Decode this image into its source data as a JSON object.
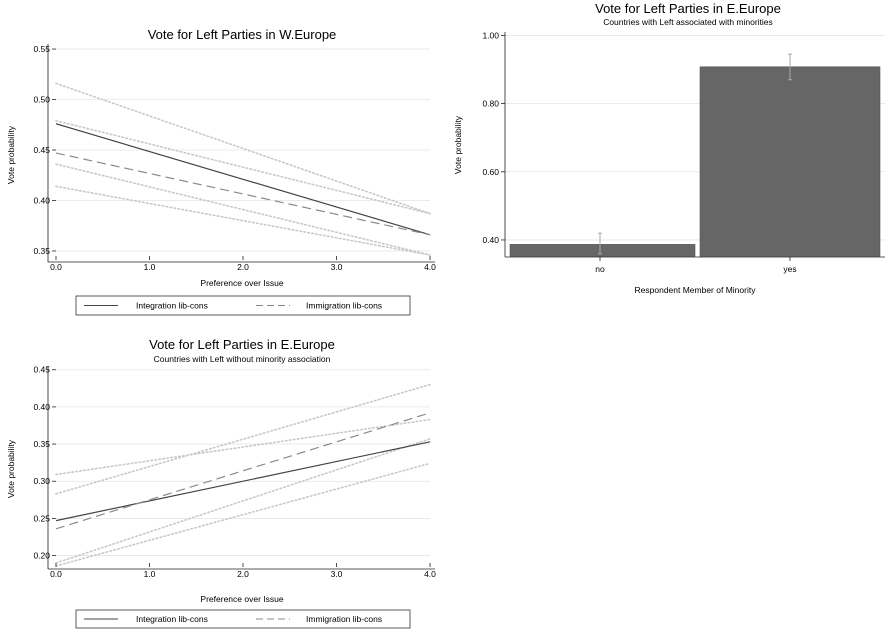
{
  "chart_data": [
    {
      "type": "line",
      "title": "Vote for Left Parties in W.Europe",
      "subtitle": "",
      "xlabel": "Preference over Issue",
      "ylabel": "Vote probability",
      "xlim": [
        0,
        4
      ],
      "ylim": [
        0.345,
        0.555
      ],
      "xticks": [
        0,
        1,
        2,
        3,
        4
      ],
      "xtick_labels": [
        "0.0",
        "1.0",
        "2.0",
        "3.0",
        "4.0"
      ],
      "yticks": [
        0.35,
        0.4,
        0.45,
        0.5,
        0.55
      ],
      "ytick_labels": [
        "0.35",
        "0.40",
        "0.45",
        "0.50",
        "0.55"
      ],
      "grid": true,
      "legend_position": "bottom",
      "x": [
        0,
        4
      ],
      "series": [
        {
          "name": "Integration lib-cons",
          "style": "solid",
          "values": [
            0.476,
            0.366
          ],
          "ci_lower": [
            0.436,
            0.346
          ],
          "ci_upper": [
            0.516,
            0.387
          ]
        },
        {
          "name": "Immigration lib-cons",
          "style": "dashed",
          "values": [
            0.447,
            0.366
          ],
          "ci_lower": [
            0.414,
            0.346
          ],
          "ci_upper": [
            0.479,
            0.387
          ]
        }
      ]
    },
    {
      "type": "bar",
      "title": "Vote for Left Parties in E.Europe",
      "subtitle": "Countries with Left associated with minorities",
      "xlabel": "Respondent Member of Minority",
      "ylabel": "Vote probability",
      "ylim": [
        0.35,
        1.01
      ],
      "yticks": [
        0.4,
        0.6,
        0.8,
        1.0
      ],
      "ytick_labels": [
        "0.40",
        "0.60",
        "0.80",
        "1.00"
      ],
      "grid": true,
      "categories": [
        "no",
        "yes"
      ],
      "values": [
        0.387,
        0.908
      ],
      "ci_lower": [
        0.359,
        0.87
      ],
      "ci_upper": [
        0.42,
        0.945
      ]
    },
    {
      "type": "line",
      "title": "Vote for Left Parties in E.Europe",
      "subtitle": "Countries with Left without minority association",
      "xlabel": "Preference over Issue",
      "ylabel": "Vote probability",
      "xlim": [
        0,
        4
      ],
      "ylim": [
        0.19,
        0.455
      ],
      "xticks": [
        0,
        1,
        2,
        3,
        4
      ],
      "xtick_labels": [
        "0.0",
        "1.0",
        "2.0",
        "3.0",
        "4.0"
      ],
      "yticks": [
        0.2,
        0.25,
        0.3,
        0.35,
        0.4,
        0.45
      ],
      "ytick_labels": [
        "0.20",
        "0.25",
        "0.30",
        "0.35",
        "0.40",
        "0.45"
      ],
      "grid": true,
      "legend_position": "bottom",
      "x": [
        0,
        4
      ],
      "series": [
        {
          "name": "Integration lib-cons",
          "style": "solid",
          "values": [
            0.247,
            0.353
          ],
          "ci_lower": [
            0.186,
            0.324
          ],
          "ci_upper": [
            0.309,
            0.383
          ]
        },
        {
          "name": "Immigration lib-cons",
          "style": "dashed",
          "values": [
            0.236,
            0.392
          ],
          "ci_lower": [
            0.19,
            0.357
          ],
          "ci_upper": [
            0.283,
            0.43
          ]
        }
      ]
    }
  ]
}
